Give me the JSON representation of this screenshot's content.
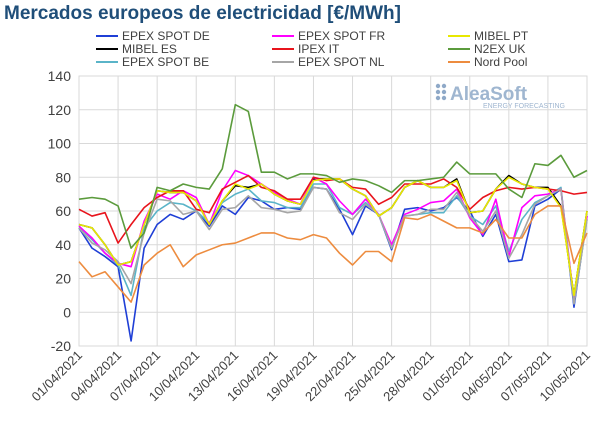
{
  "chart_data": {
    "type": "line",
    "title": "Mercados europeos de electricidad [€/MWh]",
    "xlabel": "",
    "ylabel": "",
    "ylim": [
      -20,
      140
    ],
    "yticks": [
      -20,
      0,
      20,
      40,
      60,
      80,
      100,
      120,
      140
    ],
    "grid": true,
    "legend_position": "top",
    "x": [
      "01/04/2021",
      "02/04/2021",
      "03/04/2021",
      "04/04/2021",
      "05/04/2021",
      "06/04/2021",
      "07/04/2021",
      "08/04/2021",
      "09/04/2021",
      "10/04/2021",
      "11/04/2021",
      "12/04/2021",
      "13/04/2021",
      "14/04/2021",
      "15/04/2021",
      "16/04/2021",
      "17/04/2021",
      "18/04/2021",
      "19/04/2021",
      "20/04/2021",
      "21/04/2021",
      "22/04/2021",
      "23/04/2021",
      "24/04/2021",
      "25/04/2021",
      "26/04/2021",
      "27/04/2021",
      "28/04/2021",
      "29/04/2021",
      "30/04/2021",
      "01/05/2021",
      "02/05/2021",
      "03/05/2021",
      "04/05/2021",
      "05/05/2021",
      "06/05/2021",
      "07/05/2021",
      "08/05/2021",
      "09/05/2021",
      "10/05/2021"
    ],
    "xtick_labels": [
      "01/04/2021",
      "04/04/2021",
      "07/04/2021",
      "10/04/2021",
      "13/04/2021",
      "16/04/2021",
      "19/04/2021",
      "22/04/2021",
      "25/04/2021",
      "28/04/2021",
      "01/05/2021",
      "04/05/2021",
      "07/05/2021",
      "10/05/2021"
    ],
    "series": [
      {
        "name": "EPEX SPOT DE",
        "color": "#1f3fd6",
        "values": [
          50,
          38,
          33,
          27,
          -17,
          38,
          52,
          58,
          55,
          60,
          51,
          63,
          58,
          68,
          66,
          61,
          62,
          61,
          74,
          73,
          61,
          46,
          63,
          58,
          37,
          61,
          62,
          60,
          62,
          68,
          60,
          45,
          58,
          30,
          31,
          63,
          67,
          73,
          3,
          57
        ]
      },
      {
        "name": "MIBEL ES",
        "color": "#000000",
        "values": [
          52,
          50,
          40,
          28,
          30,
          52,
          72,
          71,
          71,
          66,
          52,
          66,
          75,
          74,
          76,
          70,
          66,
          64,
          79,
          79,
          79,
          73,
          69,
          57,
          62,
          74,
          78,
          74,
          74,
          79,
          59,
          60,
          73,
          81,
          76,
          74,
          74,
          63,
          10,
          60
        ]
      },
      {
        "name": "EPEX SPOT BE",
        "color": "#5ab4c8",
        "values": [
          51,
          43,
          35,
          28,
          10,
          50,
          60,
          65,
          64,
          60,
          53,
          65,
          70,
          73,
          66,
          65,
          62,
          62,
          76,
          76,
          62,
          58,
          65,
          58,
          38,
          57,
          58,
          59,
          59,
          69,
          57,
          52,
          63,
          36,
          55,
          65,
          69,
          74,
          5,
          55
        ]
      },
      {
        "name": "EPEX SPOT FR",
        "color": "#ff00ff",
        "values": [
          51,
          44,
          35,
          29,
          27,
          54,
          70,
          67,
          72,
          68,
          52,
          72,
          84,
          81,
          76,
          71,
          67,
          64,
          80,
          76,
          66,
          58,
          67,
          58,
          40,
          58,
          61,
          65,
          66,
          73,
          56,
          46,
          67,
          33,
          62,
          69,
          70,
          73,
          7,
          57
        ]
      },
      {
        "name": "IPEX IT",
        "color": "#e8141c",
        "values": [
          61,
          57,
          59,
          41,
          52,
          62,
          68,
          72,
          72,
          61,
          59,
          73,
          77,
          81,
          74,
          72,
          67,
          67,
          80,
          78,
          79,
          74,
          73,
          64,
          68,
          76,
          76,
          76,
          79,
          74,
          61,
          68,
          72,
          74,
          73,
          74,
          73,
          72,
          70,
          71
        ]
      },
      {
        "name": "EPEX SPOT NL",
        "color": "#a6a6a6",
        "values": [
          50,
          41,
          37,
          30,
          17,
          47,
          67,
          66,
          58,
          60,
          49,
          61,
          62,
          69,
          62,
          61,
          59,
          60,
          74,
          73,
          59,
          55,
          64,
          58,
          38,
          57,
          58,
          61,
          61,
          71,
          57,
          48,
          60,
          32,
          46,
          64,
          69,
          73,
          5,
          55
        ]
      },
      {
        "name": "MIBEL PT",
        "color": "#e8e800",
        "values": [
          52,
          50,
          40,
          28,
          30,
          52,
          72,
          71,
          71,
          66,
          52,
          66,
          76,
          73,
          76,
          70,
          66,
          64,
          78,
          79,
          79,
          73,
          69,
          57,
          62,
          74,
          78,
          74,
          74,
          78,
          59,
          60,
          73,
          80,
          76,
          74,
          73,
          62,
          10,
          60
        ]
      },
      {
        "name": "N2EX UK",
        "color": "#5b9b3c",
        "values": [
          67,
          68,
          67,
          63,
          38,
          47,
          74,
          72,
          76,
          74,
          73,
          85,
          123,
          119,
          83,
          83,
          79,
          82,
          82,
          81,
          77,
          79,
          78,
          75,
          71,
          78,
          78,
          79,
          80,
          89,
          82,
          82,
          82,
          73,
          68,
          88,
          87,
          93,
          80,
          84
        ]
      },
      {
        "name": "Nord Pool",
        "color": "#ed8c3f",
        "values": [
          30,
          21,
          24,
          15,
          6,
          28,
          35,
          40,
          27,
          34,
          37,
          40,
          41,
          44,
          47,
          47,
          44,
          43,
          46,
          44,
          35,
          28,
          36,
          36,
          30,
          56,
          55,
          58,
          54,
          50,
          50,
          47,
          55,
          44,
          44,
          58,
          63,
          63,
          29,
          47
        ]
      }
    ],
    "watermark": {
      "brand": "AleaSoft",
      "tagline": "ENERGY FORECASTING"
    }
  }
}
